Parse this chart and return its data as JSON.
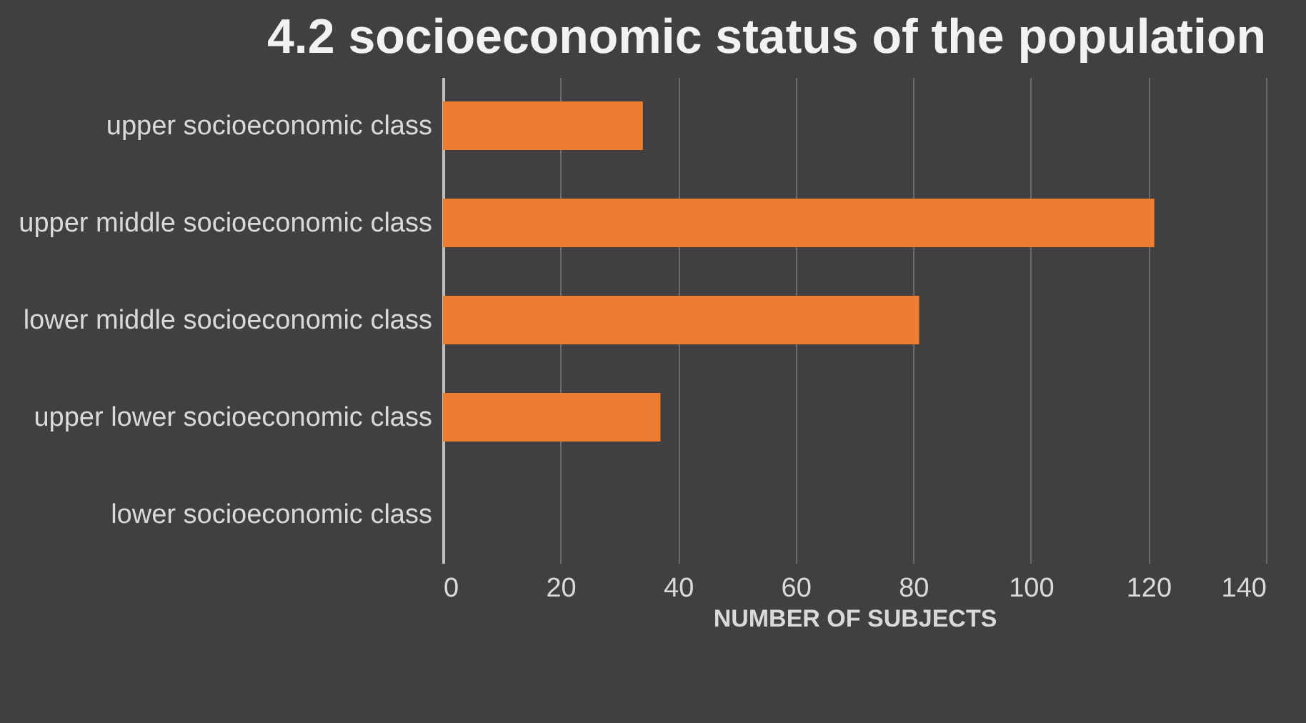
{
  "chart_data": {
    "type": "bar",
    "orientation": "horizontal",
    "title": "4.2 socioeconomic status of the population",
    "xlabel": "NUMBER OF SUBJECTS",
    "categories": [
      "upper socioeconomic class",
      "upper middle socioeconomic class",
      "lower middle socioeconomic class",
      "upper lower socioeconomic class",
      "lower socioeconomic class"
    ],
    "values": [
      34,
      121,
      81,
      37,
      0
    ],
    "color": "#ed7d31",
    "xlim": [
      0,
      140
    ],
    "xticks": [
      0,
      20,
      40,
      60,
      80,
      100,
      120,
      140
    ],
    "grid": "x"
  }
}
